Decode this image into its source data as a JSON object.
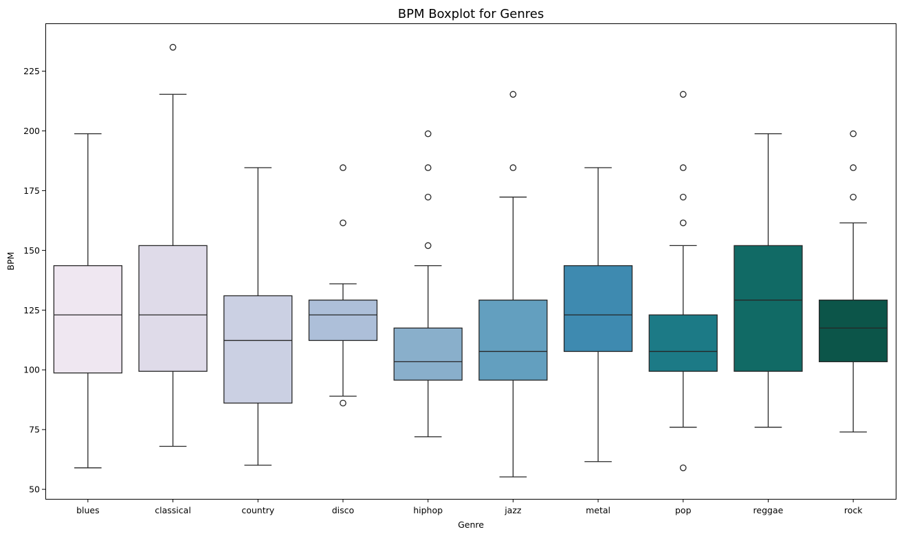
{
  "chart_data": {
    "type": "boxplot",
    "title": "BPM Boxplot for Genres",
    "xlabel": "Genre",
    "ylabel": "BPM",
    "ylim": [
      46,
      245
    ],
    "yticks": [
      50,
      75,
      100,
      125,
      150,
      175,
      200,
      225
    ],
    "grid": false,
    "legend": "none",
    "categories": [
      "blues",
      "classical",
      "country",
      "disco",
      "hiphop",
      "jazz",
      "metal",
      "pop",
      "reggae",
      "rock"
    ],
    "boxes": [
      {
        "category": "blues",
        "color": "#efe7f1",
        "whisker_low": 59,
        "q1": 98.7,
        "median": 123.0,
        "q3": 143.6,
        "whisker_high": 198.8,
        "outliers": []
      },
      {
        "category": "classical",
        "color": "#dfdbe9",
        "whisker_low": 68,
        "q1": 99.4,
        "median": 123.0,
        "q3": 152.0,
        "whisker_high": 215.3,
        "outliers": [
          235.0
        ]
      },
      {
        "category": "country",
        "color": "#cbd0e3",
        "whisker_low": 60.1,
        "q1": 86.1,
        "median": 112.3,
        "q3": 131.0,
        "whisker_high": 184.6,
        "outliers": []
      },
      {
        "category": "disco",
        "color": "#adbfd9",
        "whisker_low": 89,
        "q1": 112.3,
        "median": 123.0,
        "q3": 129.2,
        "whisker_high": 136.0,
        "outliers": [
          86.1,
          161.5,
          184.6
        ]
      },
      {
        "category": "hiphop",
        "color": "#89afcb",
        "whisker_low": 72,
        "q1": 95.7,
        "median": 103.4,
        "q3": 117.5,
        "whisker_high": 143.6,
        "outliers": [
          152.0,
          172.3,
          184.6,
          198.8
        ]
      },
      {
        "category": "jazz",
        "color": "#639fbf",
        "whisker_low": 55.2,
        "q1": 95.7,
        "median": 107.7,
        "q3": 129.2,
        "whisker_high": 172.3,
        "outliers": [
          184.6,
          215.3
        ]
      },
      {
        "category": "metal",
        "color": "#3e8ab0",
        "whisker_low": 61.6,
        "q1": 107.7,
        "median": 123.0,
        "q3": 143.6,
        "whisker_high": 184.6,
        "outliers": []
      },
      {
        "category": "pop",
        "color": "#1c7a86",
        "whisker_low": 76,
        "q1": 99.4,
        "median": 107.7,
        "q3": 123.0,
        "whisker_high": 152.0,
        "outliers": [
          59.0,
          161.5,
          172.3,
          184.6,
          215.3
        ]
      },
      {
        "category": "reggae",
        "color": "#116a65",
        "whisker_low": 76,
        "q1": 99.4,
        "median": 129.2,
        "q3": 152.0,
        "whisker_high": 198.8,
        "outliers": []
      },
      {
        "category": "rock",
        "color": "#0c5549",
        "whisker_low": 74,
        "q1": 103.4,
        "median": 117.5,
        "q3": 129.2,
        "whisker_high": 161.5,
        "outliers": [
          172.3,
          184.6,
          198.8
        ]
      }
    ]
  }
}
